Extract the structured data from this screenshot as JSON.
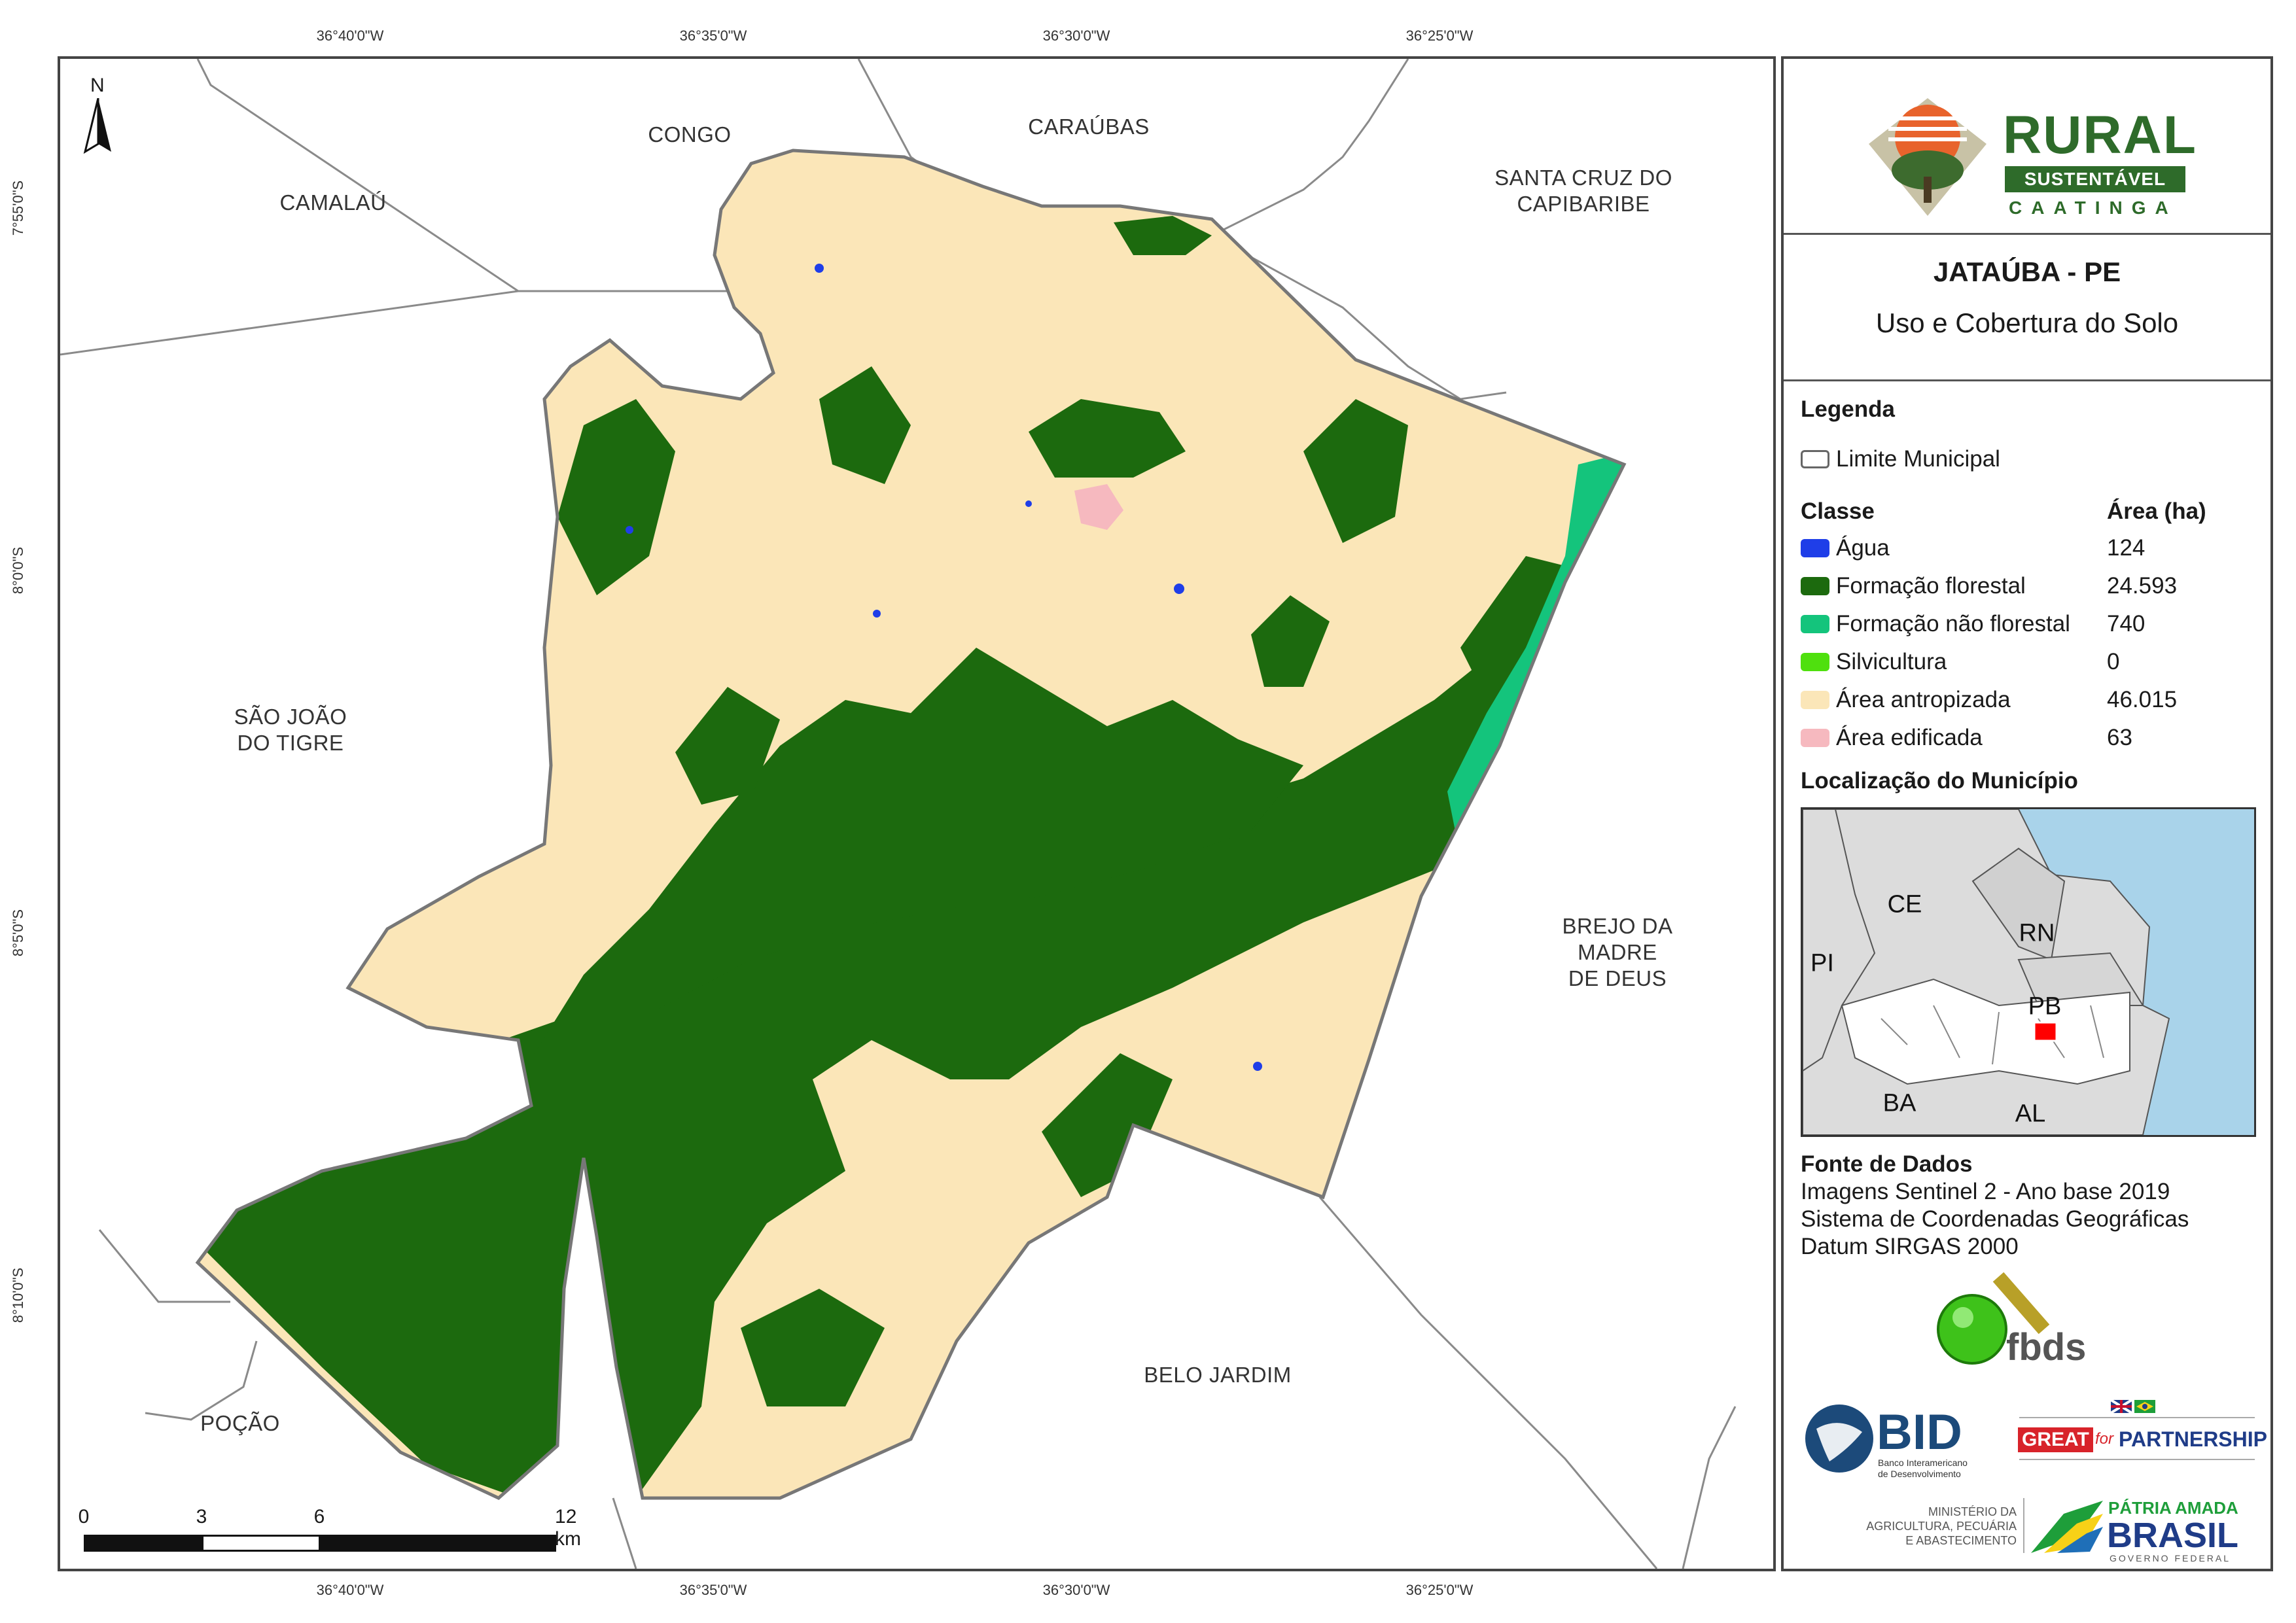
{
  "coordinates": {
    "longitudes": [
      "36°40'0\"W",
      "36°35'0\"W",
      "36°30'0\"W",
      "36°25'0\"W"
    ],
    "latitudes": [
      "7°55'0\"S",
      "8°0'0\"S",
      "8°5'0\"S",
      "8°10'0\"S"
    ]
  },
  "map": {
    "north_label": "N",
    "neighbors": {
      "congo": "CONGO",
      "caraubas": "CARAÚBAS",
      "camalau": "CAMALAÚ",
      "santa_cruz": "SANTA CRUZ DO\nCAPIBARIBE",
      "sao_joao": "SÃO JOÃO\nDO TIGRE",
      "brejo": "BREJO DA\nMADRE\nDE DEUS",
      "belo_jardim": "BELO JARDIM",
      "pocao": "POÇÃO"
    },
    "scale": {
      "ticks": [
        "0",
        "3",
        "6",
        "12 km"
      ]
    }
  },
  "panel": {
    "logo": {
      "rural": "RURAL",
      "sustentavel": "SUSTENTÁVEL",
      "caatinga": "CAATINGA"
    },
    "title": "JATAÚBA - PE",
    "subtitle": "Uso e Cobertura do Solo",
    "legend_heading": "Legenda",
    "limit_label": "Limite Municipal",
    "class_heading": "Classe",
    "area_heading": "Área (ha)",
    "classes": [
      {
        "label": "Água",
        "area": "124",
        "color": "#1f3ee8"
      },
      {
        "label": "Formação florestal",
        "area": "24.593",
        "color": "#1c6a0e"
      },
      {
        "label": "Formação não florestal",
        "area": "740",
        "color": "#14c47c"
      },
      {
        "label": "Silvicultura",
        "area": "0",
        "color": "#4fe00e"
      },
      {
        "label": "Área antropizada",
        "area": "46.015",
        "color": "#fbe6b8"
      },
      {
        "label": "Área edificada",
        "area": "63",
        "color": "#f6b9bf"
      }
    ],
    "location_heading": "Localização do Município",
    "inset_labels": {
      "ce": "CE",
      "rn": "RN",
      "pi": "PI",
      "pb": "PB",
      "ba": "BA",
      "al": "AL"
    },
    "source_heading": "Fonte de Dados",
    "source_lines": [
      "Imagens Sentinel 2 - Ano base 2019",
      "Sistema de Coordenadas Geográficas",
      "Datum SIRGAS 2000"
    ],
    "partners": {
      "fbds": "fbds",
      "bid": "BID",
      "bid_sub": "Banco Interamericano\nde Desenvolvimento",
      "great": "GREAT",
      "for": "for",
      "partnership": "PARTNERSHIP",
      "ministry": "MINISTÉRIO DA\nAGRICULTURA, PECUÁRIA\nE ABASTECIMENTO",
      "patria": "PÁTRIA AMADA",
      "brasil": "BRASIL",
      "gov": "GOVERNO FEDERAL"
    }
  }
}
